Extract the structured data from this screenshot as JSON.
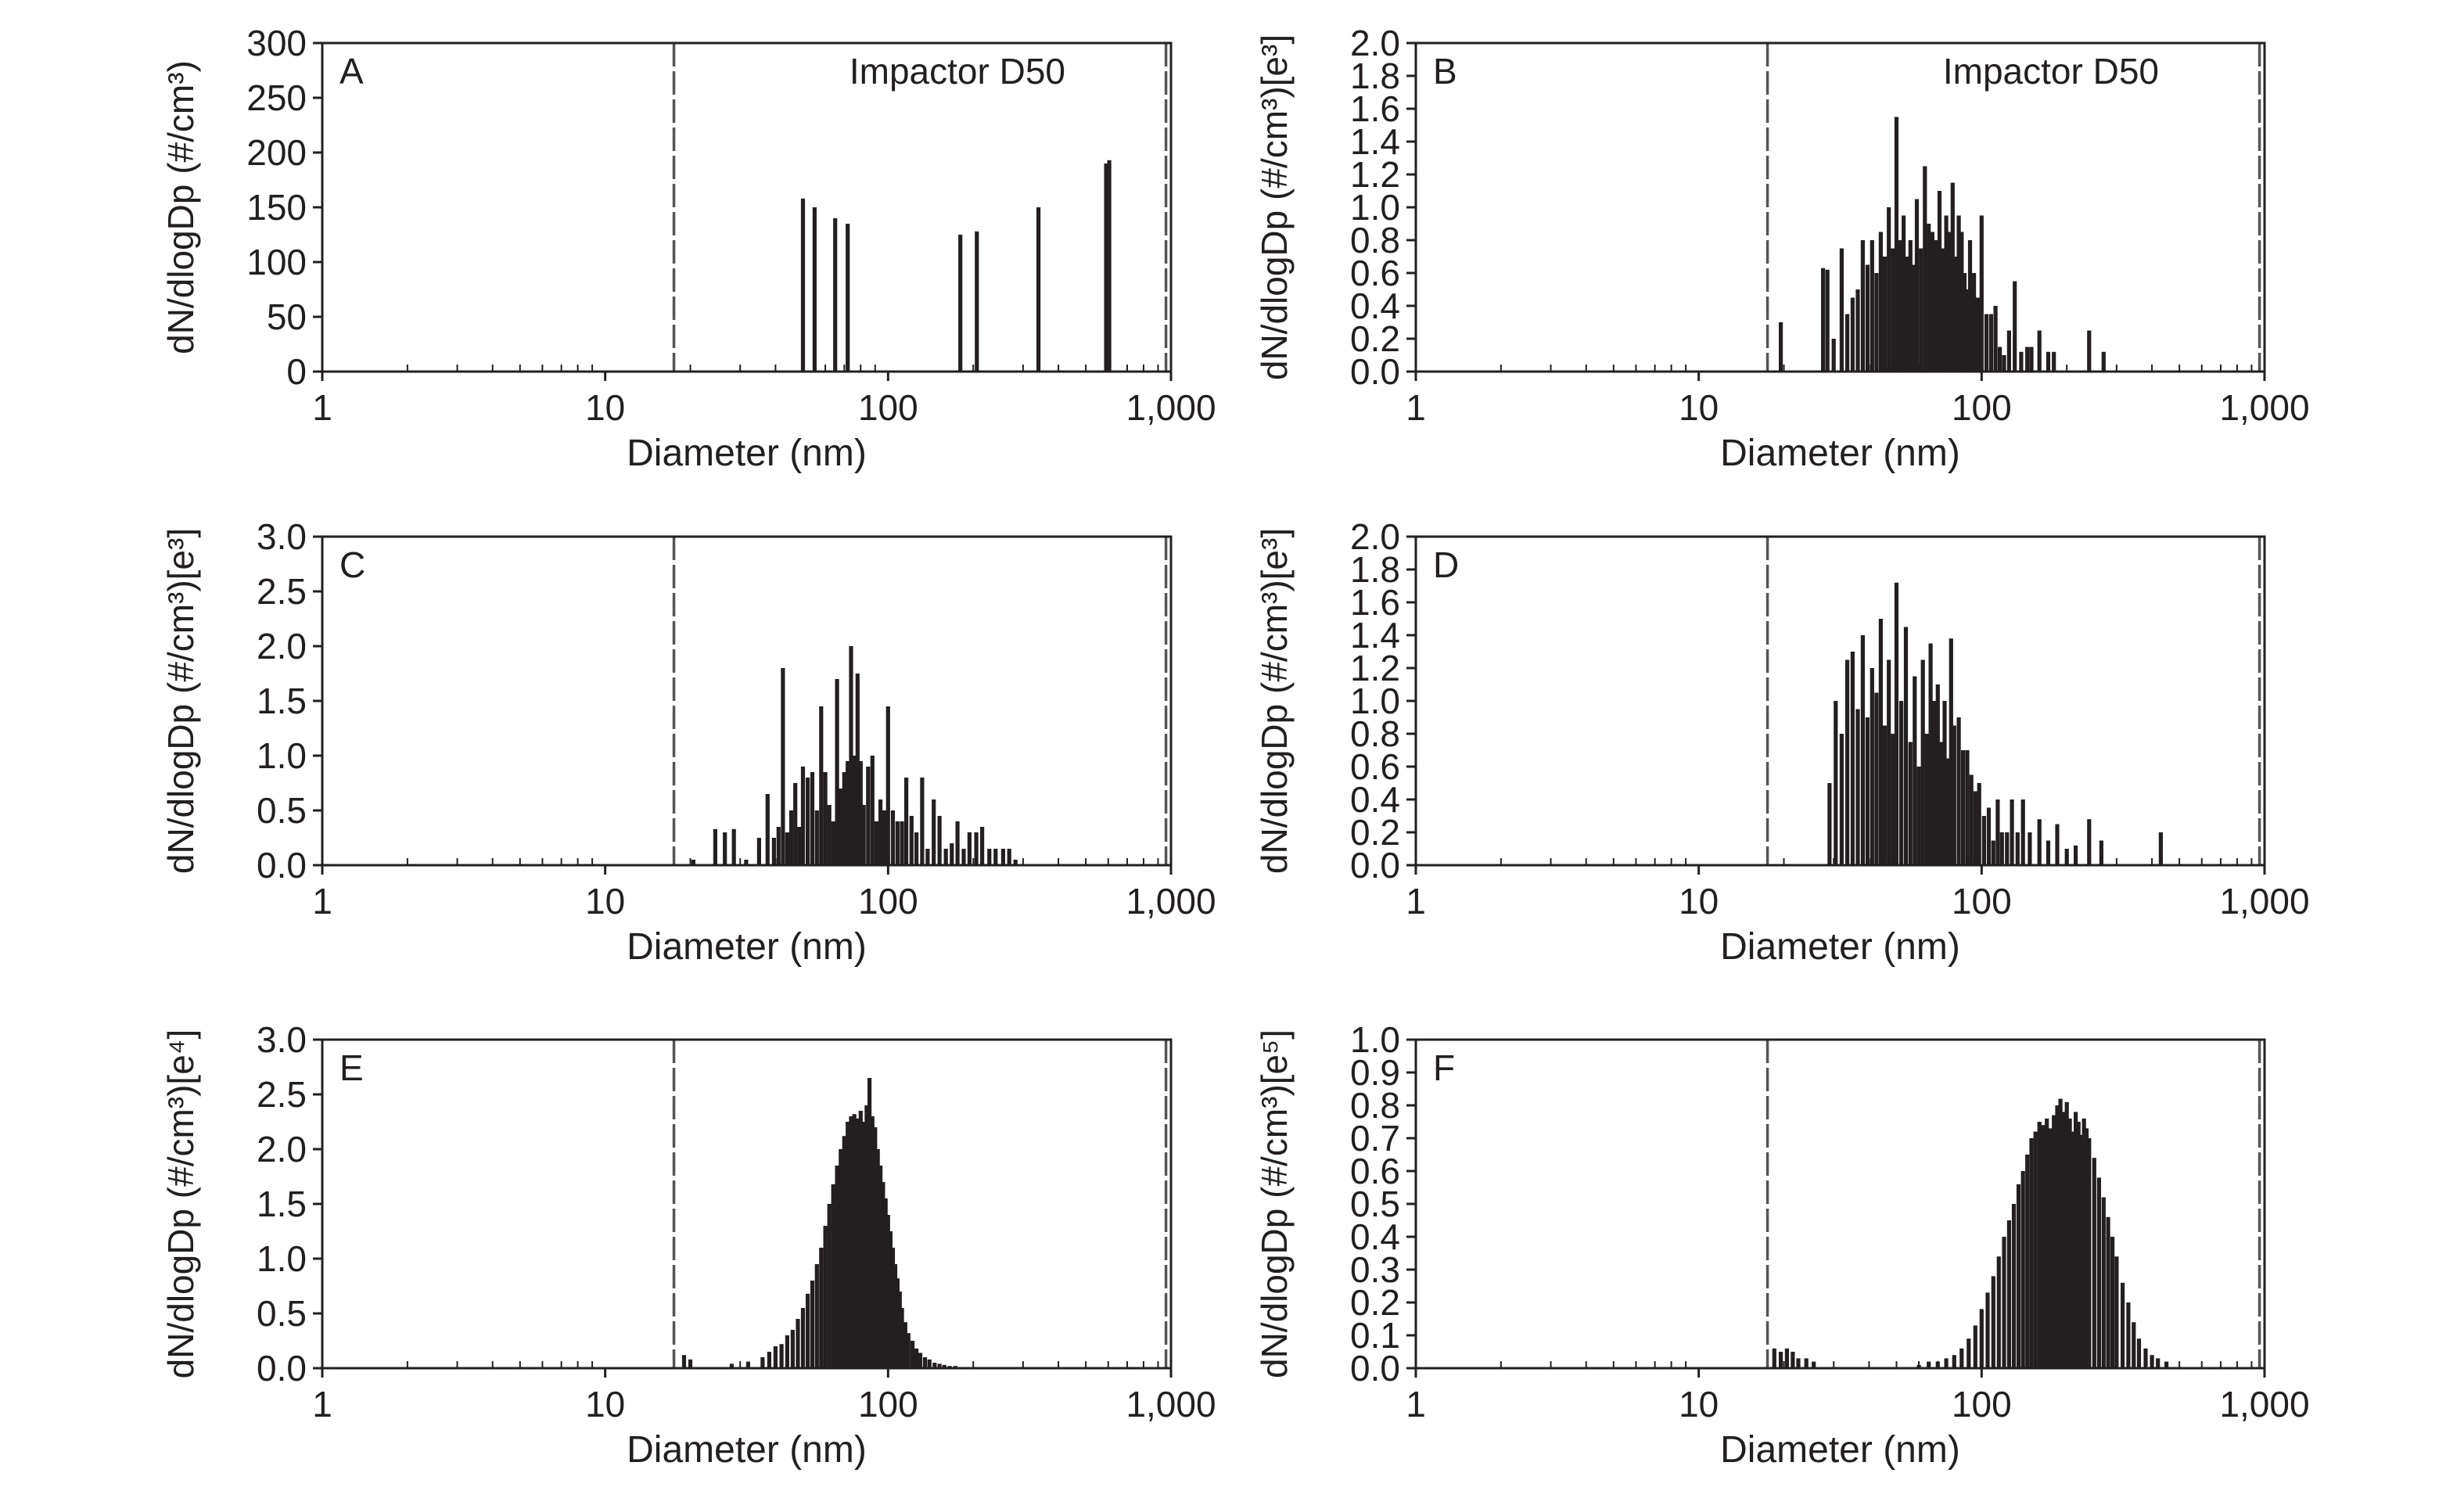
{
  "figure": {
    "x_axis_label": "Diameter (nm)",
    "x_tick_labels": [
      "1",
      "10",
      "100",
      "1,000"
    ],
    "annotation_text": "Impactor D50"
  },
  "chart_data": [
    {
      "panel": "A",
      "type": "bar",
      "xscale": "log",
      "xlim": [
        1,
        1000
      ],
      "ylim": [
        0,
        300
      ],
      "yticks": [
        "0",
        "50",
        "100",
        "150",
        "200",
        "250",
        "300"
      ],
      "xlabel": "Diameter (nm)",
      "ylabel": "dN/dlogDp (#/cm³)",
      "annotation": "Impactor D50",
      "vertical_markers_nm": [
        17.5,
        960
      ],
      "x": [
        50,
        55,
        65,
        72,
        180,
        206,
        340,
        590,
        605
      ],
      "values": [
        158,
        150,
        140,
        135,
        125,
        128,
        150,
        190,
        193
      ]
    },
    {
      "panel": "B",
      "type": "bar",
      "xscale": "log",
      "xlim": [
        1,
        1000
      ],
      "ylim": [
        0,
        2.0
      ],
      "yticks": [
        "0.0",
        "0.2",
        "0.4",
        "0.6",
        "0.8",
        "1.0",
        "1.2",
        "1.4",
        "1.6",
        "1.8",
        "2.0"
      ],
      "xlabel": "Diameter (nm)",
      "ylabel": "dN/dlogDp (#/cm³)[e³]",
      "annotation": "Impactor D50",
      "vertical_markers_nm": [
        17.5,
        960
      ],
      "x": [
        19.5,
        27.5,
        28.5,
        30,
        32,
        33.5,
        35,
        36.5,
        38,
        39.5,
        41,
        42.5,
        44,
        45.5,
        47,
        48.5,
        50,
        51.5,
        53,
        54.5,
        56,
        57.5,
        59,
        61,
        63,
        65,
        67,
        69,
        71,
        73,
        75,
        77,
        79,
        81,
        83,
        85,
        87,
        89,
        91,
        94,
        97,
        100,
        104,
        108,
        112,
        116,
        120,
        125,
        131,
        138,
        145,
        150,
        160,
        172,
        180,
        240,
        270
      ],
      "values": [
        0.3,
        0.63,
        0.62,
        0.2,
        0.75,
        0.35,
        0.45,
        0.5,
        0.8,
        0.65,
        0.8,
        0.6,
        0.85,
        0.7,
        1.0,
        0.75,
        1.55,
        0.8,
        0.95,
        0.7,
        0.8,
        0.65,
        1.05,
        0.75,
        1.25,
        0.9,
        0.85,
        0.8,
        1.1,
        0.75,
        0.95,
        0.85,
        1.15,
        0.7,
        0.95,
        0.85,
        0.6,
        0.5,
        0.8,
        0.6,
        0.45,
        0.95,
        0.35,
        0.35,
        0.4,
        0.15,
        0.1,
        0.25,
        0.55,
        0.12,
        0.15,
        0.15,
        0.25,
        0.12,
        0.12,
        0.25,
        0.12
      ]
    },
    {
      "panel": "C",
      "type": "bar",
      "xscale": "log",
      "xlim": [
        1,
        1000
      ],
      "ylim": [
        0,
        3.0
      ],
      "yticks": [
        "0.0",
        "0.5",
        "1.0",
        "1.5",
        "2.0",
        "2.5",
        "3.0"
      ],
      "xlabel": "Diameter (nm)",
      "ylabel": "dN/dlogDp (#/cm³)[e³]",
      "annotation": "",
      "vertical_markers_nm": [
        17.5,
        960
      ],
      "x": [
        20.5,
        24.5,
        26.5,
        28.5,
        31.5,
        35,
        37.5,
        39.5,
        41,
        42.5,
        44,
        45.5,
        47,
        48.5,
        50,
        52,
        54,
        56,
        58,
        60,
        62,
        64,
        66,
        68,
        70,
        72,
        74,
        76,
        78,
        80,
        82,
        85,
        88,
        91,
        94,
        97,
        100,
        104,
        108,
        112,
        116,
        121,
        126,
        132,
        138,
        145,
        152,
        160,
        168,
        176,
        185,
        194,
        205,
        215,
        228,
        240,
        255,
        268,
        282
      ],
      "values": [
        0.05,
        0.33,
        0.3,
        0.33,
        0.05,
        0.25,
        0.65,
        0.25,
        0.35,
        1.8,
        0.3,
        0.5,
        0.75,
        0.35,
        0.9,
        0.8,
        0.85,
        0.5,
        1.45,
        0.85,
        0.55,
        0.4,
        1.7,
        0.7,
        0.85,
        0.95,
        2.0,
        1.0,
        1.75,
        0.95,
        0.55,
        0.9,
        1.0,
        0.4,
        0.6,
        0.5,
        1.45,
        0.5,
        0.4,
        0.4,
        0.8,
        0.45,
        0.3,
        0.8,
        0.15,
        0.6,
        0.45,
        0.15,
        0.2,
        0.4,
        0.15,
        0.3,
        0.3,
        0.35,
        0.15,
        0.15,
        0.15,
        0.15,
        0.05
      ]
    },
    {
      "panel": "D",
      "type": "bar",
      "xscale": "log",
      "xlim": [
        1,
        1000
      ],
      "ylim": [
        0,
        2.0
      ],
      "yticks": [
        "0.0",
        "0.2",
        "0.4",
        "0.6",
        "0.8",
        "1.0",
        "1.2",
        "1.4",
        "1.6",
        "1.8",
        "2.0"
      ],
      "xlabel": "Diameter (nm)",
      "ylabel": "dN/dlogDp (#/cm³)[e³]",
      "annotation": "",
      "vertical_markers_nm": [
        17.5,
        960
      ],
      "x": [
        29,
        30.5,
        32,
        33.5,
        35,
        36.5,
        38,
        39.5,
        41,
        42.5,
        44,
        45.5,
        47,
        48.5,
        50,
        52,
        54,
        56,
        58,
        60,
        62,
        64,
        66,
        68,
        70,
        72,
        74,
        76,
        78,
        80,
        83,
        86,
        89,
        92,
        95,
        98,
        102,
        106,
        110,
        114,
        118,
        123,
        128,
        134,
        140,
        148,
        160,
        172,
        185,
        200,
        215,
        240,
        265,
        430
      ],
      "values": [
        0.5,
        1.0,
        0.8,
        1.25,
        1.3,
        0.95,
        1.4,
        0.9,
        1.2,
        1.05,
        1.5,
        0.85,
        1.25,
        0.8,
        1.72,
        1.0,
        1.45,
        0.75,
        1.15,
        0.6,
        1.25,
        0.8,
        1.35,
        1.0,
        1.1,
        0.75,
        1.0,
        0.65,
        1.38,
        0.85,
        0.9,
        0.7,
        0.7,
        0.55,
        0.45,
        0.5,
        0.3,
        0.35,
        0.15,
        0.4,
        0.2,
        0.2,
        0.4,
        0.2,
        0.4,
        0.2,
        0.28,
        0.15,
        0.25,
        0.1,
        0.12,
        0.28,
        0.15,
        0.2
      ]
    },
    {
      "panel": "E",
      "type": "bar",
      "xscale": "log",
      "xlim": [
        1,
        1000
      ],
      "ylim": [
        0,
        3.0
      ],
      "yticks": [
        "0.0",
        "0.5",
        "1.0",
        "1.5",
        "2.0",
        "2.5",
        "3.0"
      ],
      "xlabel": "Diameter (nm)",
      "ylabel": "dN/dlogDp (#/cm³)[e⁴]",
      "annotation": "",
      "vertical_markers_nm": [
        17.5,
        960
      ],
      "x": [
        19,
        20,
        28,
        32,
        36,
        38,
        40,
        42,
        44,
        46,
        48,
        50,
        52,
        54,
        56,
        58,
        60,
        62,
        64,
        66,
        68,
        70,
        72,
        74,
        76,
        78,
        80,
        82,
        84,
        86,
        88,
        90,
        92,
        94,
        96,
        98,
        100,
        102,
        104,
        106,
        108,
        110,
        112,
        115,
        118,
        122,
        126,
        130,
        135,
        140,
        146,
        152,
        158,
        165,
        173
      ],
      "values": [
        0.12,
        0.08,
        0.04,
        0.06,
        0.1,
        0.15,
        0.2,
        0.22,
        0.3,
        0.35,
        0.45,
        0.55,
        0.68,
        0.8,
        0.95,
        1.1,
        1.3,
        1.5,
        1.68,
        1.85,
        2.0,
        2.12,
        2.25,
        2.3,
        2.32,
        2.28,
        2.35,
        2.25,
        2.4,
        2.65,
        2.3,
        2.2,
        2.0,
        1.85,
        1.7,
        1.55,
        1.4,
        1.25,
        1.1,
        0.95,
        0.82,
        0.7,
        0.55,
        0.42,
        0.32,
        0.25,
        0.18,
        0.14,
        0.1,
        0.08,
        0.05,
        0.04,
        0.03,
        0.02,
        0.02
      ]
    },
    {
      "panel": "F",
      "type": "bar",
      "xscale": "log",
      "xlim": [
        1,
        1000
      ],
      "ylim": [
        0,
        1.0
      ],
      "yticks": [
        "0.0",
        "0.1",
        "0.2",
        "0.3",
        "0.4",
        "0.5",
        "0.6",
        "0.7",
        "0.8",
        "0.9",
        "1.0"
      ],
      "xlabel": "Diameter (nm)",
      "ylabel": "dN/dlogDp (#/cm³)[e⁵]",
      "annotation": "",
      "vertical_markers_nm": [
        17.5,
        960
      ],
      "x": [
        18.5,
        19.5,
        20.5,
        21.5,
        22.5,
        24,
        25.5,
        60,
        65,
        70,
        75,
        80,
        85,
        90,
        95,
        100,
        105,
        110,
        115,
        120,
        125,
        130,
        135,
        140,
        145,
        150,
        155,
        160,
        165,
        170,
        175,
        180,
        185,
        190,
        195,
        200,
        205,
        210,
        215,
        220,
        225,
        230,
        235,
        240,
        250,
        260,
        270,
        280,
        290,
        300,
        315,
        330,
        345,
        360,
        380,
        400,
        420,
        450
      ],
      "values": [
        0.06,
        0.05,
        0.06,
        0.05,
        0.03,
        0.03,
        0.02,
        0.01,
        0.02,
        0.02,
        0.03,
        0.04,
        0.06,
        0.09,
        0.13,
        0.18,
        0.23,
        0.28,
        0.34,
        0.4,
        0.45,
        0.5,
        0.56,
        0.6,
        0.65,
        0.7,
        0.72,
        0.75,
        0.74,
        0.76,
        0.73,
        0.77,
        0.8,
        0.82,
        0.78,
        0.81,
        0.76,
        0.72,
        0.78,
        0.75,
        0.71,
        0.76,
        0.73,
        0.7,
        0.64,
        0.58,
        0.52,
        0.46,
        0.4,
        0.34,
        0.26,
        0.2,
        0.14,
        0.09,
        0.06,
        0.04,
        0.03,
        0.02
      ]
    }
  ]
}
